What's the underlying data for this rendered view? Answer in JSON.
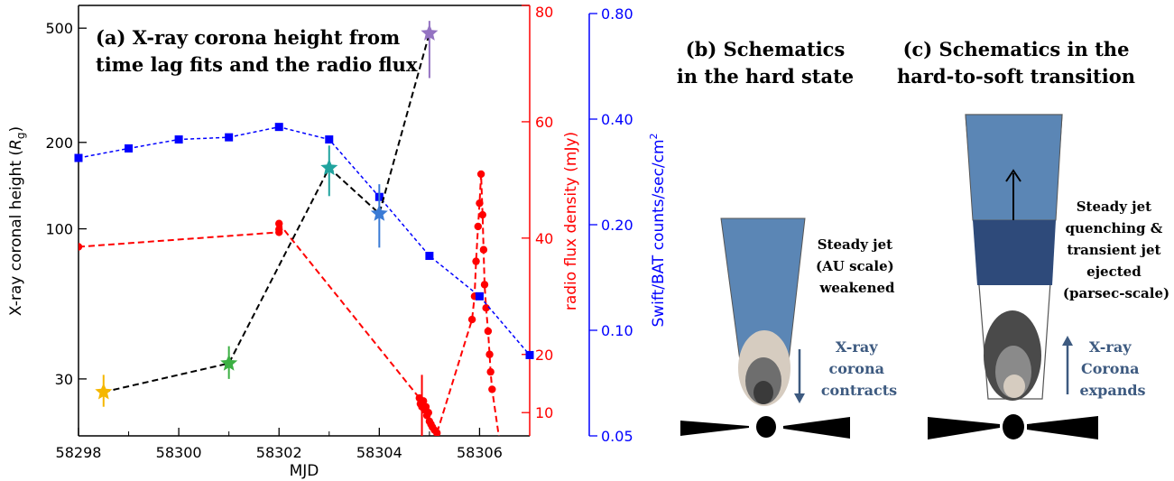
{
  "panel_a": {
    "title_line1": "(a) X-ray corona height from",
    "title_line2": "time lag fits and the radio flux"
  },
  "panel_b": {
    "title_line1": "(b) Schematics",
    "title_line2": "in the hard state",
    "jet_label": [
      "Steady jet",
      "(AU scale)",
      "weakened"
    ],
    "corona_label": [
      "X-ray",
      "corona",
      "contracts"
    ]
  },
  "panel_c": {
    "title_line1": "(c) Schematics in the",
    "title_line2": "hard-to-soft transition",
    "jet_label": [
      "Steady jet",
      "quenching &",
      "transient jet",
      "ejected",
      "(parsec-scale)"
    ],
    "corona_label": [
      "X-ray",
      "Corona",
      "expands"
    ]
  },
  "colors": {
    "radio": "#ff0000",
    "bat": "#0000ff",
    "height_line": "#000000",
    "jet_steady": "#5b86b5",
    "jet_transient": "#2e4a7a",
    "schematic_text": "#3d5a80"
  },
  "chart_data": {
    "type": "line",
    "xlabel": "MJD",
    "x_ticks": [
      58298,
      58300,
      58302,
      58304,
      58306
    ],
    "xlim": [
      58298,
      58307
    ],
    "axes": {
      "left": {
        "label": "X-ray coronal height (R_g)",
        "label_main": "X-ray coronal height (",
        "label_sym": "R",
        "label_sub": "g",
        "label_end": ")",
        "scale": "log",
        "ylim": [
          19,
          600
        ],
        "ticks": [
          30,
          100,
          200,
          500
        ],
        "color": "#000000"
      },
      "right1": {
        "label": "radio flux density (mJy)",
        "scale": "linear",
        "ylim": [
          6,
          80
        ],
        "ticks": [
          10,
          20,
          40,
          60,
          80
        ],
        "color": "#ff0000"
      },
      "right2": {
        "label": "Swift/BAT counts/sec/cm^2",
        "label_main": "Swift/BAT counts/sec/cm",
        "label_sup": "2",
        "scale": "log",
        "ylim": [
          0.05,
          0.8
        ],
        "ticks": [
          0.05,
          0.1,
          0.2,
          0.4,
          0.8
        ],
        "tick_labels": [
          "0.05",
          "0.10",
          "0.20",
          "0.40",
          "0.80"
        ],
        "color": "#0000ff"
      }
    },
    "series": [
      {
        "axis": "left",
        "marker": "star",
        "line_color": "#000000",
        "points": [
          {
            "x": 58298.5,
            "y": 27,
            "ylo": 24,
            "yhi": 31,
            "color": "#f5b700"
          },
          {
            "x": 58301.0,
            "y": 34,
            "ylo": 30,
            "yhi": 39,
            "color": "#3cb043"
          },
          {
            "x": 58303.0,
            "y": 163,
            "ylo": 130,
            "yhi": 195,
            "color": "#20a39e"
          },
          {
            "x": 58304.0,
            "y": 113,
            "ylo": 86,
            "yhi": 143,
            "color": "#3a7bd5"
          },
          {
            "x": 58305.0,
            "y": 480,
            "ylo": 335,
            "yhi": 530,
            "color": "#9473c2"
          }
        ]
      },
      {
        "axis": "right1",
        "marker": "circle",
        "color": "#ff0000",
        "x": [
          58298.0,
          58302.0,
          58302.0,
          58302.0,
          58304.8,
          58304.82,
          58304.85,
          58304.88,
          58304.9,
          58304.93,
          58304.95,
          58304.98,
          58305.0,
          58305.03,
          58305.06,
          58305.1,
          58305.15,
          58305.85,
          58305.9,
          58305.93,
          58305.97,
          58306.0,
          58306.03,
          58306.06,
          58306.08,
          58306.1,
          58306.13,
          58306.17,
          58306.2,
          58306.22,
          58306.25,
          58306.4
        ],
        "y": [
          38.5,
          41.0,
          41.5,
          42.5,
          12.5,
          11.5,
          11.0,
          12.0,
          10.5,
          11.0,
          9.5,
          10.0,
          8.5,
          8.0,
          7.5,
          7.0,
          6.5,
          26.0,
          30.0,
          36.0,
          42.0,
          46.0,
          51.0,
          44.0,
          38.0,
          32.0,
          28.0,
          24.0,
          20.0,
          17.0,
          14.0,
          5.0
        ],
        "errors": [
          {
            "x": 58304.85,
            "lo": 2.0,
            "hi": 16.5
          }
        ]
      },
      {
        "axis": "right2",
        "marker": "square",
        "color": "#0000ff",
        "x": [
          58297.9,
          58299.0,
          58300.0,
          58301.0,
          58302.0,
          58303.0,
          58304.0,
          58305.0,
          58306.0,
          58307.0
        ],
        "y": [
          0.31,
          0.33,
          0.35,
          0.355,
          0.38,
          0.35,
          0.24,
          0.163,
          0.125,
          0.085
        ]
      }
    ]
  }
}
